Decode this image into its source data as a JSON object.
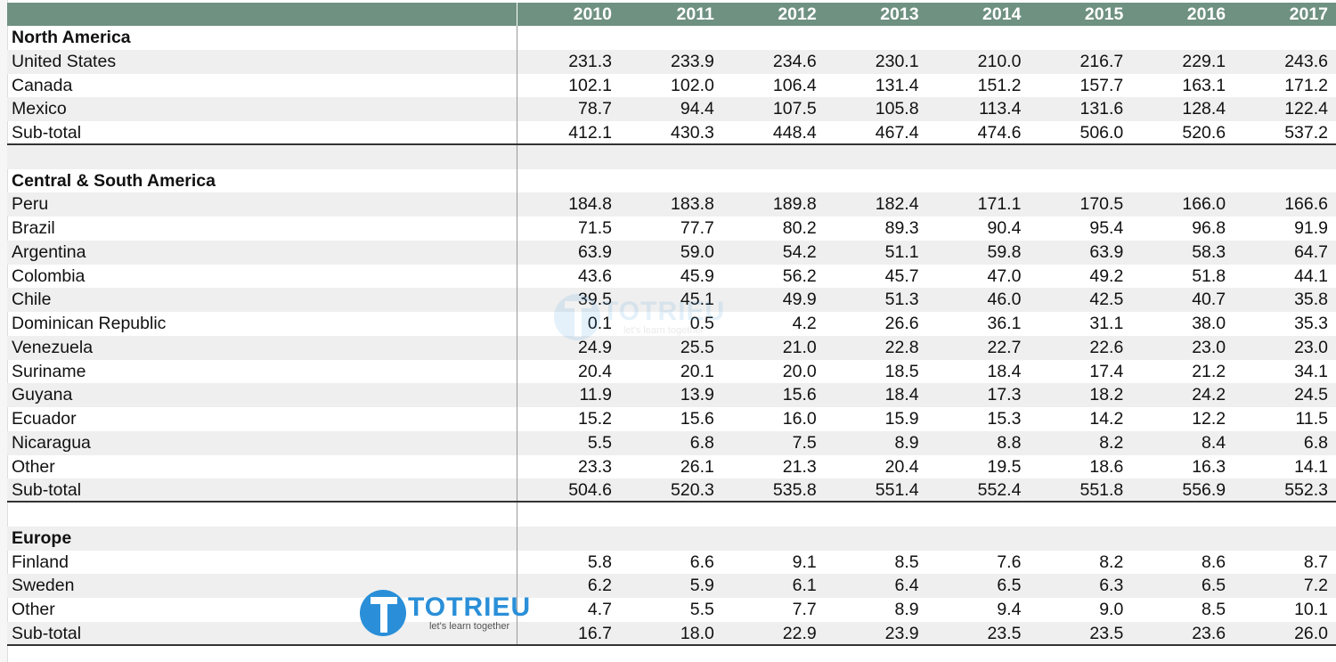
{
  "header": {
    "years": [
      "2010",
      "2011",
      "2012",
      "2013",
      "2014",
      "2015",
      "2016",
      "2017"
    ]
  },
  "rows": [
    {
      "label": "North America",
      "bold": true,
      "values": []
    },
    {
      "label": "United States",
      "values": [
        "231.3",
        "233.9",
        "234.6",
        "230.1",
        "210.0",
        "216.7",
        "229.1",
        "243.6"
      ]
    },
    {
      "label": "Canada",
      "values": [
        "102.1",
        "102.0",
        "106.4",
        "131.4",
        "151.2",
        "157.7",
        "163.1",
        "171.2"
      ]
    },
    {
      "label": "Mexico",
      "values": [
        "78.7",
        "94.4",
        "107.5",
        "105.8",
        "113.4",
        "131.6",
        "128.4",
        "122.4"
      ]
    },
    {
      "label": "Sub-total",
      "subtotal": true,
      "values": [
        "412.1",
        "430.3",
        "448.4",
        "467.4",
        "474.6",
        "506.0",
        "520.6",
        "537.2"
      ]
    },
    {
      "label": "",
      "values": []
    },
    {
      "label": "Central & South America",
      "bold": true,
      "values": []
    },
    {
      "label": "Peru",
      "values": [
        "184.8",
        "183.8",
        "189.8",
        "182.4",
        "171.1",
        "170.5",
        "166.0",
        "166.6"
      ]
    },
    {
      "label": "Brazil",
      "values": [
        "71.5",
        "77.7",
        "80.2",
        "89.3",
        "90.4",
        "95.4",
        "96.8",
        "91.9"
      ]
    },
    {
      "label": "Argentina",
      "values": [
        "63.9",
        "59.0",
        "54.2",
        "51.1",
        "59.8",
        "63.9",
        "58.3",
        "64.7"
      ]
    },
    {
      "label": "Colombia",
      "values": [
        "43.6",
        "45.9",
        "56.2",
        "45.7",
        "47.0",
        "49.2",
        "51.8",
        "44.1"
      ]
    },
    {
      "label": "Chile",
      "values": [
        "39.5",
        "45.1",
        "49.9",
        "51.3",
        "46.0",
        "42.5",
        "40.7",
        "35.8"
      ]
    },
    {
      "label": "Dominican Republic",
      "values": [
        "0.1",
        "0.5",
        "4.2",
        "26.6",
        "36.1",
        "31.1",
        "38.0",
        "35.3"
      ]
    },
    {
      "label": "Venezuela",
      "values": [
        "24.9",
        "25.5",
        "21.0",
        "22.8",
        "22.7",
        "22.6",
        "23.0",
        "23.0"
      ]
    },
    {
      "label": "Suriname",
      "values": [
        "20.4",
        "20.1",
        "20.0",
        "18.5",
        "18.4",
        "17.4",
        "21.2",
        "34.1"
      ]
    },
    {
      "label": "Guyana",
      "values": [
        "11.9",
        "13.9",
        "15.6",
        "18.4",
        "17.3",
        "18.2",
        "24.2",
        "24.5"
      ]
    },
    {
      "label": "Ecuador",
      "values": [
        "15.2",
        "15.6",
        "16.0",
        "15.9",
        "15.3",
        "14.2",
        "12.2",
        "11.5"
      ]
    },
    {
      "label": "Nicaragua",
      "values": [
        "5.5",
        "6.8",
        "7.5",
        "8.9",
        "8.8",
        "8.2",
        "8.4",
        "6.8"
      ]
    },
    {
      "label": "Other",
      "values": [
        "23.3",
        "26.1",
        "21.3",
        "20.4",
        "19.5",
        "18.6",
        "16.3",
        "14.1"
      ]
    },
    {
      "label": "Sub-total",
      "subtotal": true,
      "values": [
        "504.6",
        "520.3",
        "535.8",
        "551.4",
        "552.4",
        "551.8",
        "556.9",
        "552.3"
      ]
    },
    {
      "label": "",
      "values": []
    },
    {
      "label": "Europe",
      "bold": true,
      "values": []
    },
    {
      "label": "Finland",
      "values": [
        "5.8",
        "6.6",
        "9.1",
        "8.5",
        "7.6",
        "8.2",
        "8.6",
        "8.7"
      ]
    },
    {
      "label": "Sweden",
      "values": [
        "6.2",
        "5.9",
        "6.1",
        "6.4",
        "6.5",
        "6.3",
        "6.5",
        "7.2"
      ]
    },
    {
      "label": "Other",
      "values": [
        "4.7",
        "5.5",
        "7.7",
        "8.9",
        "9.4",
        "9.0",
        "8.5",
        "10.1"
      ]
    },
    {
      "label": "Sub-total",
      "subtotal": true,
      "values": [
        "16.7",
        "18.0",
        "22.9",
        "23.9",
        "23.5",
        "23.5",
        "23.6",
        "26.0"
      ]
    }
  ],
  "watermark": {
    "name": "TOTRIEU",
    "tagline": "let's learn together",
    "color": "#2a8fd8"
  },
  "colors": {
    "header_bg": "#6f9181",
    "stripe": "#efefef"
  }
}
